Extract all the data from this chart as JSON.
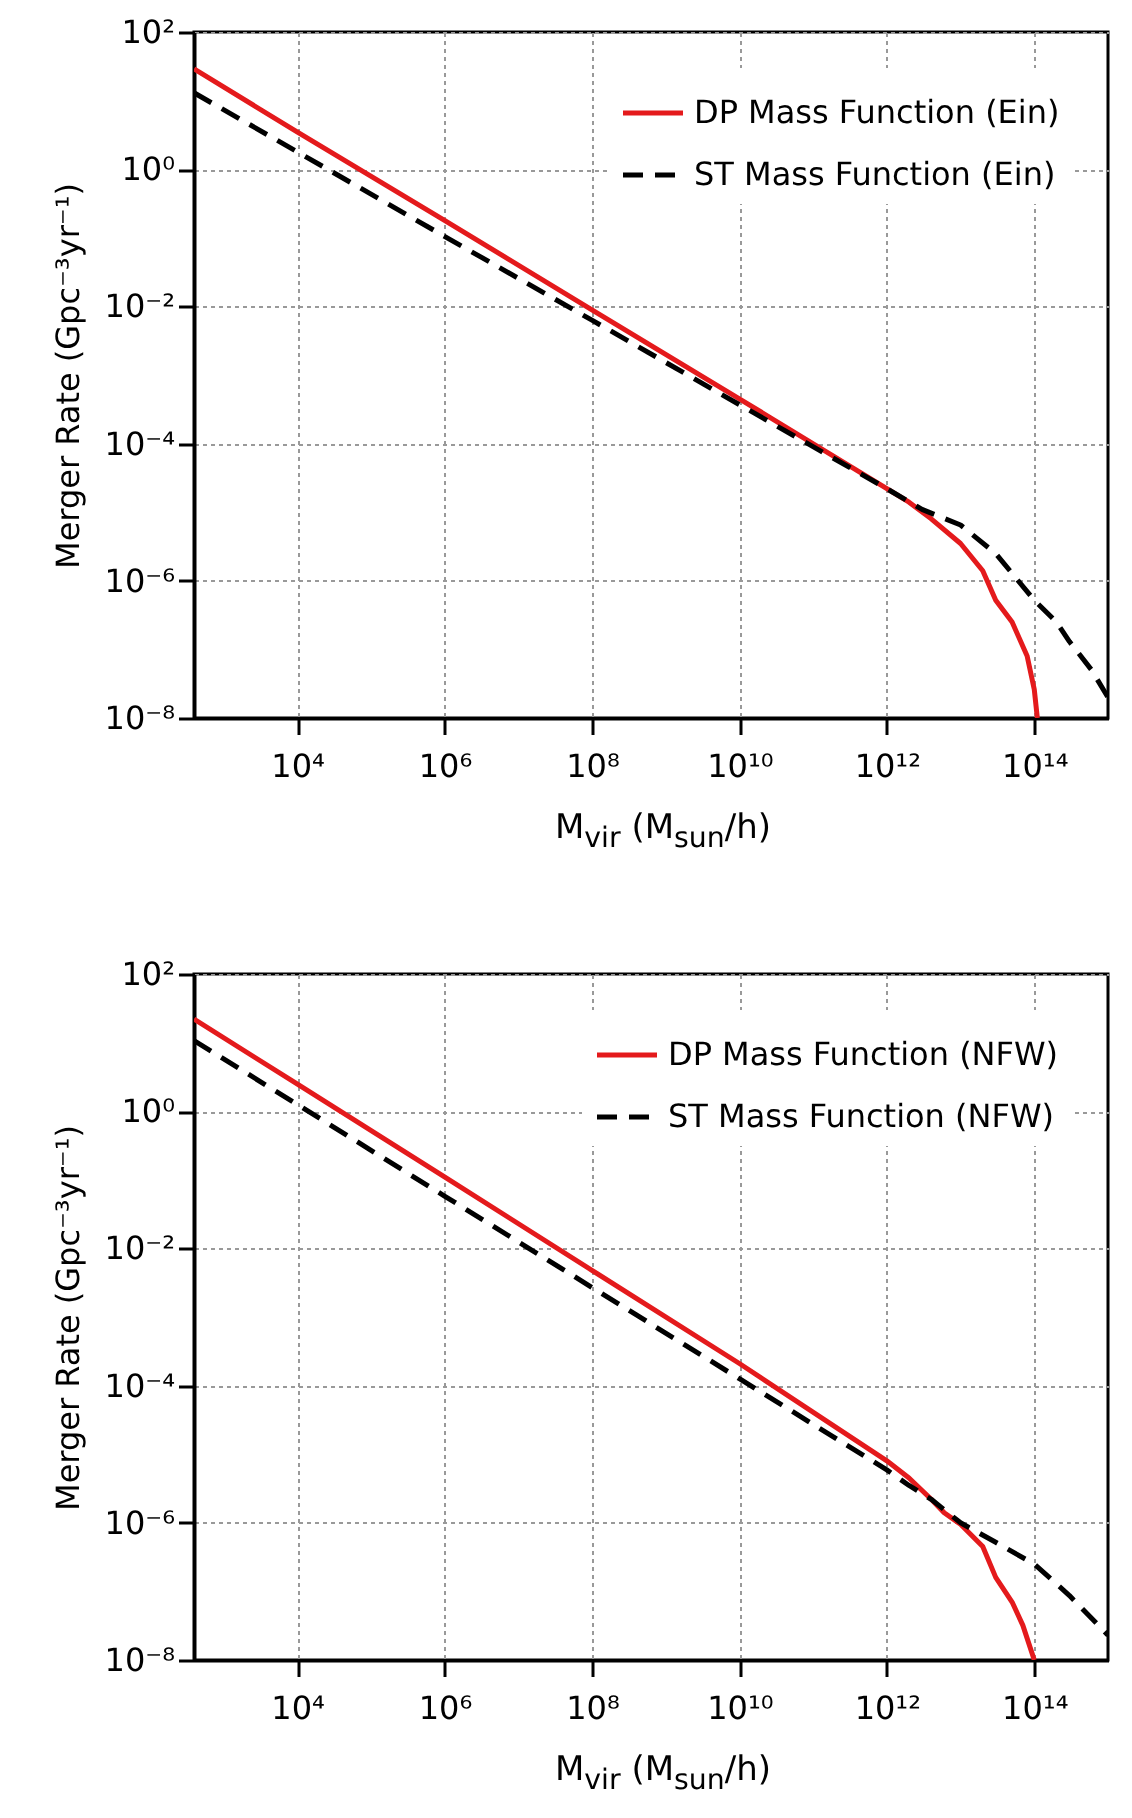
{
  "chart_data": [
    {
      "type": "line",
      "xlabel": "M$_{vir}$ (M$_{sun}$/h)",
      "ylabel": "Merger Rate (Gpc⁻³yr⁻¹)",
      "log": "xy",
      "grid": true,
      "legend": "top right",
      "xlim": [
        400,
        1000000000000000.0
      ],
      "ylim": [
        1e-08,
        100
      ],
      "xticks": [
        {
          "value": 10000.0,
          "label": "10⁴"
        },
        {
          "value": 1000000.0,
          "label": "10⁶"
        },
        {
          "value": 100000000.0,
          "label": "10⁸"
        },
        {
          "value": 10000000000.0,
          "label": "10¹⁰"
        },
        {
          "value": 1000000000000.0,
          "label": "10¹²"
        },
        {
          "value": 100000000000000.0,
          "label": "10¹⁴"
        }
      ],
      "yticks": [
        {
          "value": 1e-08,
          "label": "10⁻⁸"
        },
        {
          "value": 1e-06,
          "label": "10⁻⁶"
        },
        {
          "value": 0.0001,
          "label": "10⁻⁴"
        },
        {
          "value": 0.01,
          "label": "10⁻²"
        },
        {
          "value": 1,
          "label": "10⁰"
        },
        {
          "value": 100,
          "label": "10²"
        }
      ],
      "series": [
        {
          "name": "DP Mass Function (Ein)",
          "color": "#e41a1c",
          "line_style": "solid",
          "x": [
            400,
            10000.0,
            1000000.0,
            100000000.0,
            10000000000.0,
            1000000000000.0,
            2000000000000.0,
            4000000000000.0,
            10000000000000.0,
            20000000000000.0,
            30000000000000.0,
            50000000000000.0,
            80000000000000.0,
            100000000000000.0,
            110000000000000.0
          ],
          "values": [
            29,
            3.5,
            0.18,
            0.0089,
            0.00045,
            2.2e-05,
            1.4e-05,
            8e-06,
            3.5e-06,
            1.4e-06,
            5.2e-07,
            2.5e-07,
            8e-08,
            2.6e-08,
            1e-08
          ]
        },
        {
          "name": "ST Mass Function (Ein)",
          "color": "#000000",
          "line_style": "dashed",
          "x": [
            400,
            10000.0,
            1000000.0,
            100000000.0,
            10000000000.0,
            1000000000000.0,
            3000000000000.0,
            10000000000000.0,
            30000000000000.0,
            100000000000000.0,
            200000000000000.0,
            300000000000000.0,
            600000000000000.0,
            1000000000000000.0
          ],
          "values": [
            13,
            1.8,
            0.105,
            0.0063,
            0.00037,
            2.2e-05,
            1.1e-05,
            6.5e-06,
            2.5e-06,
            5.2e-07,
            2.5e-07,
            1.3e-07,
            5e-08,
            2e-08
          ]
        }
      ]
    },
    {
      "type": "line",
      "xlabel": "M$_{vir}$ (M$_{sun}$/h)",
      "ylabel": "Merger Rate (Gpc⁻³yr⁻¹)",
      "log": "xy",
      "grid": true,
      "legend": "top right",
      "xlim": [
        400,
        1000000000000000.0
      ],
      "ylim": [
        1e-08,
        100
      ],
      "xticks": [
        {
          "value": 10000.0,
          "label": "10⁴"
        },
        {
          "value": 1000000.0,
          "label": "10⁶"
        },
        {
          "value": 100000000.0,
          "label": "10⁸"
        },
        {
          "value": 10000000000.0,
          "label": "10¹⁰"
        },
        {
          "value": 1000000000000.0,
          "label": "10¹²"
        },
        {
          "value": 100000000000000.0,
          "label": "10¹⁴"
        }
      ],
      "yticks": [
        {
          "value": 1e-08,
          "label": "10⁻⁸"
        },
        {
          "value": 1e-06,
          "label": "10⁻⁶"
        },
        {
          "value": 0.0001,
          "label": "10⁻⁴"
        },
        {
          "value": 0.01,
          "label": "10⁻²"
        },
        {
          "value": 1,
          "label": "10⁰"
        },
        {
          "value": 100,
          "label": "10²"
        }
      ],
      "series": [
        {
          "name": "DP Mass Function (NFW)",
          "color": "#e41a1c",
          "line_style": "solid",
          "x": [
            400,
            10000.0,
            1000000.0,
            100000000.0,
            10000000000.0,
            1000000000000.0,
            2000000000000.0,
            4000000000000.0,
            6000000000000.0,
            10000000000000.0,
            20000000000000.0,
            30000000000000.0,
            50000000000000.0,
            70000000000000.0,
            100000000000000.0
          ],
          "values": [
            22,
            2.5,
            0.11,
            0.0048,
            0.00021,
            8e-06,
            4.5e-06,
            2.2e-06,
            1.4e-06,
            9.5e-07,
            4.5e-07,
            1.6e-07,
            7e-08,
            3.2e-08,
            1e-08
          ]
        },
        {
          "name": "ST Mass Function (NFW)",
          "color": "#000000",
          "line_style": "dashed",
          "x": [
            400,
            10000.0,
            1000000.0,
            100000000.0,
            10000000000.0,
            1000000000000.0,
            2000000000000.0,
            4000000000000.0,
            10000000000000.0,
            30000000000000.0,
            100000000000000.0,
            300000000000000.0,
            1000000000000000.0
          ],
          "values": [
            10.7,
            1.26,
            0.058,
            0.0027,
            0.000126,
            5.9e-06,
            3.5e-06,
            2.2e-06,
            1e-06,
            5.2e-07,
            2.5e-07,
            8.7e-08,
            2.3e-08
          ]
        }
      ]
    }
  ]
}
